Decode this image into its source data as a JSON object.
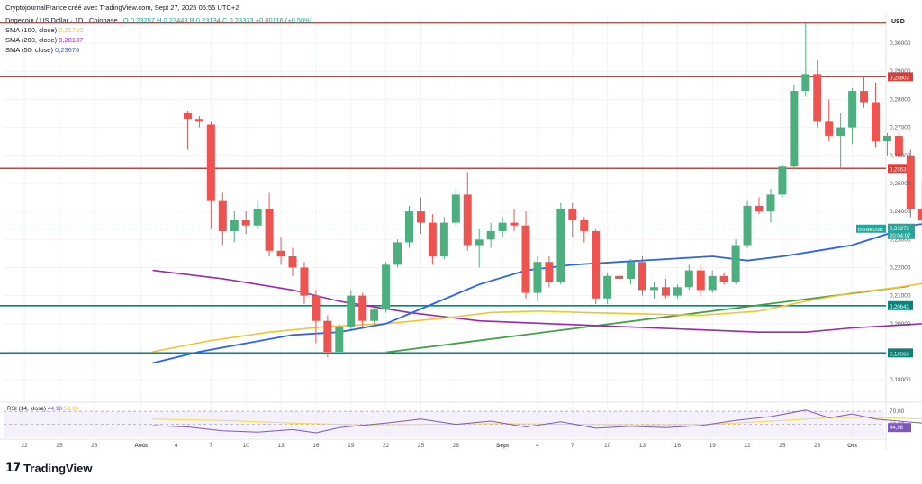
{
  "header": {
    "publisher": "CryptojournalFrance créé avec TradingView.com, Sept 27, 2025 05:55 UTC+2",
    "symbol_line": "Dogecoin / US Dollar · 1D · Coinbase",
    "ohlc": "O 0,23257  H 0,23443  B 0,23134  C 0,23373  +0,00116 (+0,50%)",
    "sma100_label": "SMA (100, close)",
    "sma100_value": "0,21710",
    "sma200_label": "SMA (200, close)",
    "sma200_value": "0,20137",
    "sma50_label": "SMA (50, close)",
    "sma50_value": "0,23676"
  },
  "currency": "USD",
  "watermark": "TradingView",
  "rsi": {
    "label": "RSI (14, close)",
    "value": "44,98",
    "ma": "54,36",
    "ticks": [
      "70,00",
      "50,00"
    ]
  },
  "colors": {
    "up": "#26a69a",
    "up_body": "#4caf7d",
    "down": "#ef5350",
    "sma50": "#2962ff",
    "sma100": "#f9c12e",
    "sma200": "#9c27b0",
    "trend": "#43a047",
    "resistance": "#e53935",
    "support": "#00897b",
    "rsi": "#7e57c2"
  },
  "chart_data": {
    "type": "candlestick",
    "y_ticks": [
      "0,18000",
      "0,19000",
      "0,20000",
      "0,21000",
      "0,22000",
      "0,23000",
      "0,24000",
      "0,25000",
      "0,26000",
      "0,27000",
      "0,28000",
      "0,29000",
      "0,30000"
    ],
    "x_ticks": [
      "22",
      "25",
      "28",
      "Août",
      "4",
      "7",
      "10",
      "13",
      "16",
      "19",
      "22",
      "25",
      "28",
      "Sept",
      "4",
      "7",
      "10",
      "13",
      "16",
      "19",
      "22",
      "25",
      "28",
      "Oct"
    ],
    "ylim": [
      0.173,
      0.309
    ],
    "price_tag": {
      "label": "DOGEUSD",
      "value": "0,23373",
      "countdown": "20:04:07"
    },
    "horizontal_levels": [
      {
        "value": 0.3072,
        "kind": "resistance",
        "label": ""
      },
      {
        "value": 0.28803,
        "kind": "resistance",
        "label": "0,28803"
      },
      {
        "value": 0.25533,
        "kind": "resistance",
        "label": "0,25533"
      },
      {
        "value": 0.20643,
        "kind": "support",
        "label": "0,20643"
      },
      {
        "value": 0.18958,
        "kind": "support",
        "label": "0,18958"
      }
    ],
    "trendline": [
      [
        -22,
        0.1898
      ],
      [
        45,
        0.225
      ]
    ],
    "candles": [
      {
        "d": -39,
        "o": 0.275,
        "h": 0.276,
        "l": 0.262,
        "c": 0.273
      },
      {
        "d": -38,
        "o": 0.273,
        "h": 0.274,
        "l": 0.27,
        "c": 0.272
      },
      {
        "d": -37,
        "o": 0.271,
        "h": 0.272,
        "l": 0.234,
        "c": 0.244
      },
      {
        "d": -36,
        "o": 0.244,
        "h": 0.247,
        "l": 0.228,
        "c": 0.233
      },
      {
        "d": -35,
        "o": 0.233,
        "h": 0.24,
        "l": 0.229,
        "c": 0.237
      },
      {
        "d": -34,
        "o": 0.237,
        "h": 0.24,
        "l": 0.232,
        "c": 0.235
      },
      {
        "d": -33,
        "o": 0.235,
        "h": 0.244,
        "l": 0.234,
        "c": 0.241
      },
      {
        "d": -32,
        "o": 0.241,
        "h": 0.247,
        "l": 0.224,
        "c": 0.226
      },
      {
        "d": -31,
        "o": 0.226,
        "h": 0.231,
        "l": 0.221,
        "c": 0.224
      },
      {
        "d": -30,
        "o": 0.224,
        "h": 0.227,
        "l": 0.217,
        "c": 0.22
      },
      {
        "d": -29,
        "o": 0.22,
        "h": 0.222,
        "l": 0.207,
        "c": 0.21
      },
      {
        "d": -28,
        "o": 0.21,
        "h": 0.212,
        "l": 0.193,
        "c": 0.201
      },
      {
        "d": -27,
        "o": 0.201,
        "h": 0.203,
        "l": 0.188,
        "c": 0.19
      },
      {
        "d": -26,
        "o": 0.19,
        "h": 0.2,
        "l": 0.189,
        "c": 0.199
      },
      {
        "d": -25,
        "o": 0.199,
        "h": 0.212,
        "l": 0.198,
        "c": 0.21
      },
      {
        "d": -24,
        "o": 0.21,
        "h": 0.211,
        "l": 0.199,
        "c": 0.201
      },
      {
        "d": -23,
        "o": 0.201,
        "h": 0.206,
        "l": 0.199,
        "c": 0.205
      },
      {
        "d": -22,
        "o": 0.205,
        "h": 0.222,
        "l": 0.204,
        "c": 0.221
      },
      {
        "d": -21,
        "o": 0.221,
        "h": 0.23,
        "l": 0.22,
        "c": 0.229
      },
      {
        "d": -20,
        "o": 0.229,
        "h": 0.242,
        "l": 0.227,
        "c": 0.24
      },
      {
        "d": -19,
        "o": 0.24,
        "h": 0.245,
        "l": 0.232,
        "c": 0.236
      },
      {
        "d": -18,
        "o": 0.236,
        "h": 0.239,
        "l": 0.221,
        "c": 0.224
      },
      {
        "d": -17,
        "o": 0.224,
        "h": 0.238,
        "l": 0.223,
        "c": 0.236
      },
      {
        "d": -16,
        "o": 0.236,
        "h": 0.248,
        "l": 0.235,
        "c": 0.246
      },
      {
        "d": -15,
        "o": 0.246,
        "h": 0.254,
        "l": 0.226,
        "c": 0.228
      },
      {
        "d": -14,
        "o": 0.228,
        "h": 0.234,
        "l": 0.22,
        "c": 0.23
      },
      {
        "d": -13,
        "o": 0.23,
        "h": 0.236,
        "l": 0.227,
        "c": 0.233
      },
      {
        "d": -12,
        "o": 0.233,
        "h": 0.238,
        "l": 0.231,
        "c": 0.236
      },
      {
        "d": -11,
        "o": 0.236,
        "h": 0.241,
        "l": 0.233,
        "c": 0.235
      },
      {
        "d": -10,
        "o": 0.235,
        "h": 0.24,
        "l": 0.209,
        "c": 0.211
      },
      {
        "d": -9,
        "o": 0.211,
        "h": 0.224,
        "l": 0.208,
        "c": 0.222
      },
      {
        "d": -8,
        "o": 0.222,
        "h": 0.224,
        "l": 0.213,
        "c": 0.215
      },
      {
        "d": -7,
        "o": 0.215,
        "h": 0.243,
        "l": 0.214,
        "c": 0.241
      },
      {
        "d": -6,
        "o": 0.241,
        "h": 0.243,
        "l": 0.231,
        "c": 0.237
      },
      {
        "d": -5,
        "o": 0.237,
        "h": 0.238,
        "l": 0.229,
        "c": 0.233
      },
      {
        "d": -4,
        "o": 0.233,
        "h": 0.234,
        "l": 0.207,
        "c": 0.209
      },
      {
        "d": -3,
        "o": 0.209,
        "h": 0.218,
        "l": 0.207,
        "c": 0.217
      },
      {
        "d": -2,
        "o": 0.217,
        "h": 0.218,
        "l": 0.215,
        "c": 0.216
      },
      {
        "d": -1,
        "o": 0.216,
        "h": 0.223,
        "l": 0.214,
        "c": 0.222
      },
      {
        "d": 0,
        "o": 0.222,
        "h": 0.224,
        "l": 0.21,
        "c": 0.212
      },
      {
        "d": 1,
        "o": 0.212,
        "h": 0.215,
        "l": 0.209,
        "c": 0.213
      },
      {
        "d": 2,
        "o": 0.213,
        "h": 0.216,
        "l": 0.209,
        "c": 0.21
      },
      {
        "d": 3,
        "o": 0.21,
        "h": 0.214,
        "l": 0.209,
        "c": 0.213
      },
      {
        "d": 4,
        "o": 0.213,
        "h": 0.221,
        "l": 0.212,
        "c": 0.219
      },
      {
        "d": 5,
        "o": 0.219,
        "h": 0.221,
        "l": 0.21,
        "c": 0.212
      },
      {
        "d": 6,
        "o": 0.212,
        "h": 0.219,
        "l": 0.211,
        "c": 0.217
      },
      {
        "d": 7,
        "o": 0.217,
        "h": 0.218,
        "l": 0.214,
        "c": 0.215
      },
      {
        "d": 8,
        "o": 0.215,
        "h": 0.23,
        "l": 0.214,
        "c": 0.228
      },
      {
        "d": 9,
        "o": 0.228,
        "h": 0.244,
        "l": 0.227,
        "c": 0.242
      },
      {
        "d": 10,
        "o": 0.242,
        "h": 0.245,
        "l": 0.239,
        "c": 0.24
      },
      {
        "d": 11,
        "o": 0.24,
        "h": 0.248,
        "l": 0.236,
        "c": 0.246
      },
      {
        "d": 12,
        "o": 0.246,
        "h": 0.257,
        "l": 0.245,
        "c": 0.256
      },
      {
        "d": 13,
        "o": 0.256,
        "h": 0.285,
        "l": 0.255,
        "c": 0.283
      },
      {
        "d": 14,
        "o": 0.283,
        "h": 0.307,
        "l": 0.281,
        "c": 0.289
      },
      {
        "d": 15,
        "o": 0.289,
        "h": 0.294,
        "l": 0.27,
        "c": 0.272
      },
      {
        "d": 16,
        "o": 0.272,
        "h": 0.28,
        "l": 0.265,
        "c": 0.267
      },
      {
        "d": 17,
        "o": 0.267,
        "h": 0.275,
        "l": 0.255,
        "c": 0.27
      },
      {
        "d": 18,
        "o": 0.27,
        "h": 0.284,
        "l": 0.264,
        "c": 0.283
      },
      {
        "d": 19,
        "o": 0.283,
        "h": 0.288,
        "l": 0.277,
        "c": 0.279
      },
      {
        "d": 20,
        "o": 0.279,
        "h": 0.286,
        "l": 0.263,
        "c": 0.265
      },
      {
        "d": 21,
        "o": 0.265,
        "h": 0.268,
        "l": 0.26,
        "c": 0.267
      },
      {
        "d": 22,
        "o": 0.267,
        "h": 0.269,
        "l": 0.259,
        "c": 0.26
      },
      {
        "d": 23,
        "o": 0.26,
        "h": 0.262,
        "l": 0.238,
        "c": 0.241
      },
      {
        "d": 24,
        "o": 0.241,
        "h": 0.251,
        "l": 0.235,
        "c": 0.237
      },
      {
        "d": 25,
        "o": 0.237,
        "h": 0.242,
        "l": 0.234,
        "c": 0.241
      },
      {
        "d": 26,
        "o": 0.241,
        "h": 0.242,
        "l": 0.22,
        "c": 0.223
      },
      {
        "d": 27,
        "o": 0.223,
        "h": 0.233,
        "l": 0.222,
        "c": 0.232
      },
      {
        "d": 28,
        "o": 0.2326,
        "h": 0.2344,
        "l": 0.2313,
        "c": 0.2337
      }
    ],
    "sma50": [
      [
        -42,
        0.186
      ],
      [
        -38,
        0.19
      ],
      [
        -34,
        0.193
      ],
      [
        -30,
        0.196
      ],
      [
        -26,
        0.197
      ],
      [
        -22,
        0.2
      ],
      [
        -18,
        0.207
      ],
      [
        -14,
        0.214
      ],
      [
        -10,
        0.219
      ],
      [
        -6,
        0.221
      ],
      [
        -2,
        0.222
      ],
      [
        2,
        0.223
      ],
      [
        6,
        0.224
      ],
      [
        9,
        0.2225
      ],
      [
        12,
        0.224
      ],
      [
        15,
        0.226
      ],
      [
        18,
        0.228
      ],
      [
        21,
        0.232
      ],
      [
        23,
        0.235
      ],
      [
        26,
        0.2365
      ],
      [
        27,
        0.2368
      ]
    ],
    "sma100": [
      [
        -42,
        0.19
      ],
      [
        -37,
        0.194
      ],
      [
        -32,
        0.197
      ],
      [
        -27,
        0.199
      ],
      [
        -22,
        0.2
      ],
      [
        -17,
        0.202
      ],
      [
        -13,
        0.204
      ],
      [
        -9,
        0.2045
      ],
      [
        -5,
        0.204
      ],
      [
        0,
        0.2035
      ],
      [
        5,
        0.203
      ],
      [
        10,
        0.2045
      ],
      [
        14,
        0.208
      ],
      [
        18,
        0.211
      ],
      [
        22,
        0.213
      ],
      [
        25,
        0.215
      ],
      [
        28,
        0.217
      ]
    ],
    "sma200": [
      [
        -42,
        0.219
      ],
      [
        -36,
        0.216
      ],
      [
        -30,
        0.212
      ],
      [
        -26,
        0.208
      ],
      [
        -20,
        0.204
      ],
      [
        -14,
        0.201
      ],
      [
        -8,
        0.2
      ],
      [
        -2,
        0.199
      ],
      [
        4,
        0.198
      ],
      [
        10,
        0.197
      ],
      [
        14,
        0.197
      ],
      [
        18,
        0.1985
      ],
      [
        22,
        0.1995
      ],
      [
        26,
        0.2005
      ],
      [
        28,
        0.2014
      ]
    ],
    "rsi_series": [
      [
        -42,
        48
      ],
      [
        -39,
        46
      ],
      [
        -36,
        40
      ],
      [
        -33,
        38
      ],
      [
        -30,
        42
      ],
      [
        -28,
        37
      ],
      [
        -26,
        45
      ],
      [
        -22,
        52
      ],
      [
        -19,
        58
      ],
      [
        -16,
        50
      ],
      [
        -13,
        55
      ],
      [
        -10,
        46
      ],
      [
        -7,
        54
      ],
      [
        -4,
        44
      ],
      [
        -1,
        47
      ],
      [
        2,
        45
      ],
      [
        5,
        48
      ],
      [
        8,
        56
      ],
      [
        11,
        62
      ],
      [
        14,
        72
      ],
      [
        16,
        60
      ],
      [
        18,
        66
      ],
      [
        20,
        58
      ],
      [
        22,
        55
      ],
      [
        24,
        52
      ],
      [
        26,
        44
      ],
      [
        28,
        45
      ]
    ],
    "rsi_ma": [
      [
        -42,
        58
      ],
      [
        -36,
        56
      ],
      [
        -30,
        52
      ],
      [
        -24,
        49
      ],
      [
        -18,
        50
      ],
      [
        -12,
        51
      ],
      [
        -6,
        50
      ],
      [
        0,
        49
      ],
      [
        6,
        50
      ],
      [
        12,
        56
      ],
      [
        16,
        60
      ],
      [
        20,
        61
      ],
      [
        24,
        58
      ],
      [
        28,
        54
      ]
    ]
  }
}
